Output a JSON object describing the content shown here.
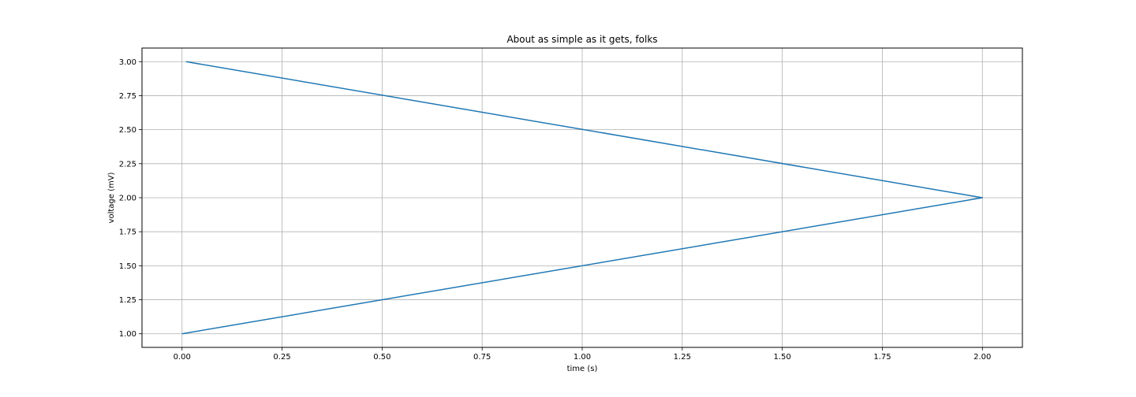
{
  "chart_data": {
    "type": "line",
    "title": "About as simple as it gets, folks",
    "xlabel": "time (s)",
    "ylabel": "voltage (mV)",
    "xlim": [
      -0.1,
      2.1
    ],
    "ylim": [
      0.9,
      3.1
    ],
    "x_ticks": [
      "0.00",
      "0.25",
      "0.50",
      "0.75",
      "1.00",
      "1.25",
      "1.50",
      "1.75",
      "2.00"
    ],
    "y_ticks": [
      "1.00",
      "1.25",
      "1.50",
      "1.75",
      "2.00",
      "2.25",
      "2.50",
      "2.75",
      "3.00"
    ],
    "grid": true,
    "series": [
      {
        "color": "#1f77b4",
        "x": [
          0.0,
          2.0,
          0.01
        ],
        "y": [
          1.0,
          2.0,
          3.0
        ]
      }
    ]
  }
}
